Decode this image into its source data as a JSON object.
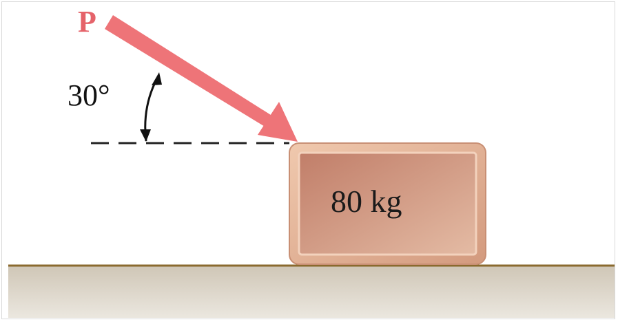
{
  "diagram": {
    "force_label": "P",
    "angle_label": "30°",
    "block_label": "80 kg"
  },
  "colors": {
    "force_arrow": "#ee7478",
    "force_text": "#e5636a",
    "block_fill": "#c98a72",
    "block_border": "#e8b99f",
    "ground_fill": "#d9d2c6",
    "ground_line": "#8a6a2e"
  }
}
